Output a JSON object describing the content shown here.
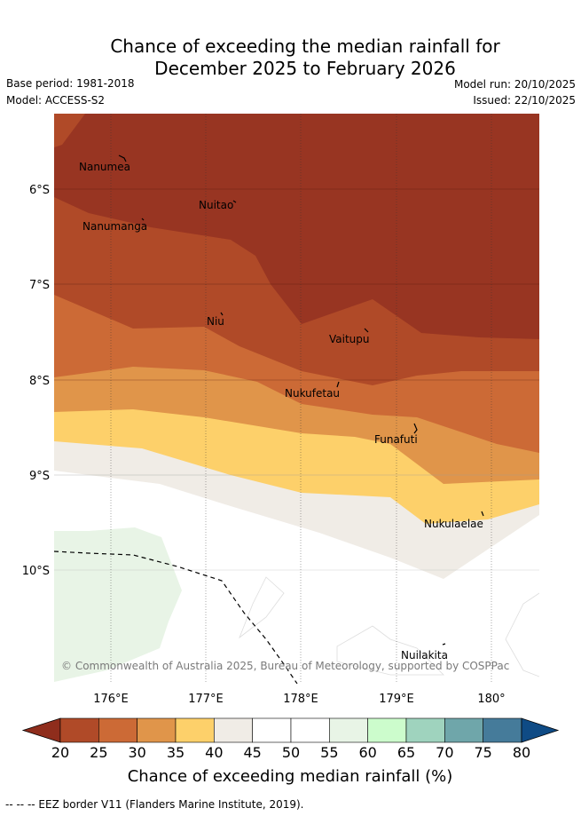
{
  "title_line1": "Chance of exceeding the median rainfall for",
  "title_line2": "December 2025 to February 2026",
  "meta": {
    "base_period": "Base period: 1981-2018",
    "model": "Model: ACCESS-S2",
    "model_run": "Model run: 20/10/2025",
    "issued": "Issued: 22/10/2025"
  },
  "map": {
    "lat_labels": [
      "6°S",
      "7°S",
      "8°S",
      "9°S",
      "10°S"
    ],
    "lon_labels": [
      "176°E",
      "177°E",
      "178°E",
      "179°E",
      "180°"
    ],
    "places": [
      {
        "name": "Nanumea"
      },
      {
        "name": "Nuitao"
      },
      {
        "name": "Nanumanga"
      },
      {
        "name": "Niu"
      },
      {
        "name": "Vaitupu"
      },
      {
        "name": "Nukufetau"
      },
      {
        "name": "Funafuti"
      },
      {
        "name": "Nukulaelae"
      },
      {
        "name": "Nuilakita"
      }
    ],
    "copyright": "© Commonwealth of Australia 2025, Bureau of Meteorology, supported by COSPPac"
  },
  "colorbar": {
    "ticks": [
      "20",
      "25",
      "30",
      "35",
      "40",
      "45",
      "50",
      "55",
      "60",
      "65",
      "70",
      "75",
      "80"
    ],
    "colors": [
      "#8f2d1c",
      "#b04a28",
      "#cc6a36",
      "#e0954a",
      "#fdd06a",
      "#f0ece6",
      "#ffffff",
      "#ffffff",
      "#e8f4e6",
      "#ccfccc",
      "#9fd3be",
      "#6fa6aa",
      "#457b9a",
      "#0f4b85"
    ],
    "title": "Chance of exceeding median rainfall (%)"
  },
  "legend_note": "-- -- -- EEZ border V11 (Flanders Marine Institute, 2019)."
}
